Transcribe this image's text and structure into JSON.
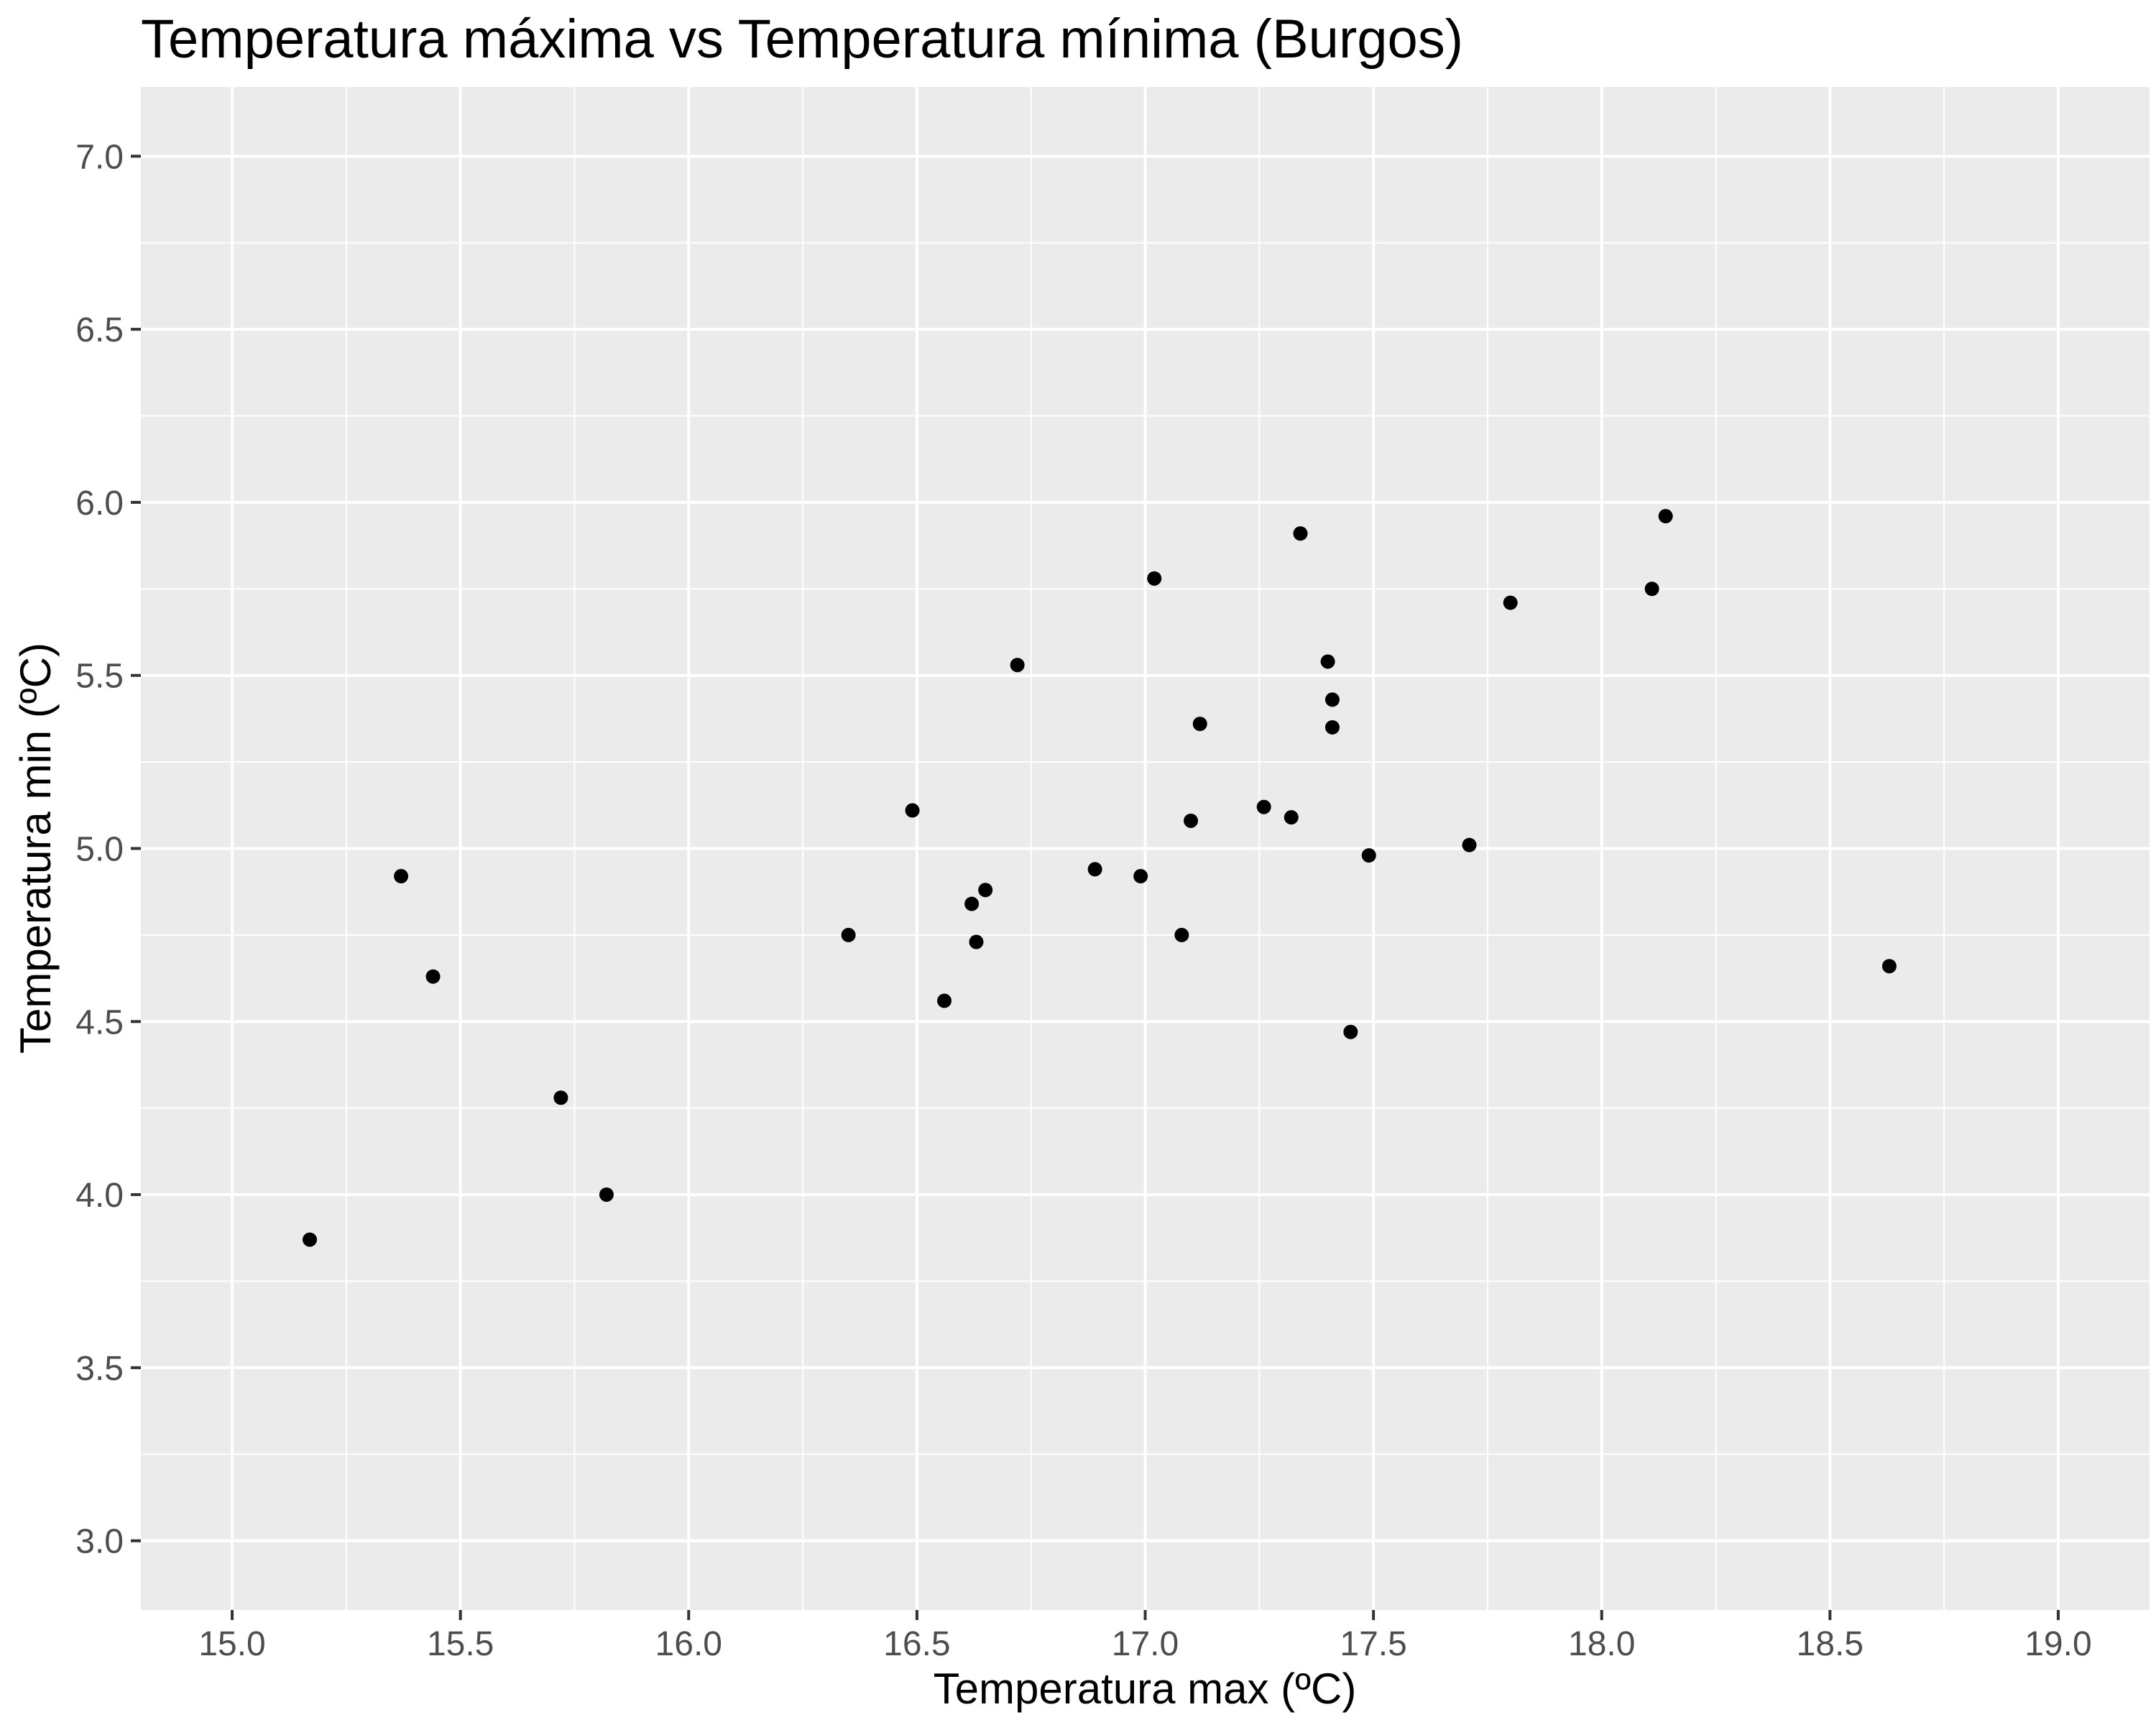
{
  "chart_data": {
    "type": "scatter",
    "title": "Temperatura máxima vs Temperatura mínima (Burgos)",
    "xlabel": "Temperatura max (ºC)",
    "ylabel": "Temperatura min (ºC)",
    "xlim": [
      14.8,
      19.2
    ],
    "ylim": [
      2.8,
      7.2
    ],
    "x_ticks": [
      15.0,
      15.5,
      16.0,
      16.5,
      17.0,
      17.5,
      18.0,
      18.5,
      19.0
    ],
    "x_tick_labels": [
      "15.0",
      "15.5",
      "16.0",
      "16.5",
      "17.0",
      "17.5",
      "18.0",
      "18.5",
      "19.0"
    ],
    "y_ticks": [
      3.0,
      3.5,
      4.0,
      4.5,
      5.0,
      5.5,
      6.0,
      6.5,
      7.0
    ],
    "y_tick_labels": [
      "3.0",
      "3.5",
      "4.0",
      "4.5",
      "5.0",
      "5.5",
      "6.0",
      "6.5",
      "7.0"
    ],
    "grid": true,
    "legend": "none",
    "colors": {
      "panel": "#ebebeb",
      "grid": "#ffffff",
      "point": "#000000",
      "tick_text": "#4d4d4d"
    },
    "points": [
      {
        "x": 15.17,
        "y": 3.87
      },
      {
        "x": 15.37,
        "y": 4.92
      },
      {
        "x": 15.44,
        "y": 4.63
      },
      {
        "x": 15.72,
        "y": 4.28
      },
      {
        "x": 15.82,
        "y": 4.0
      },
      {
        "x": 16.35,
        "y": 4.75
      },
      {
        "x": 16.49,
        "y": 5.11
      },
      {
        "x": 16.56,
        "y": 4.56
      },
      {
        "x": 16.62,
        "y": 4.84
      },
      {
        "x": 16.63,
        "y": 4.73
      },
      {
        "x": 16.65,
        "y": 4.88
      },
      {
        "x": 16.72,
        "y": 5.53
      },
      {
        "x": 16.89,
        "y": 4.94
      },
      {
        "x": 16.99,
        "y": 4.92
      },
      {
        "x": 17.02,
        "y": 5.78
      },
      {
        "x": 17.08,
        "y": 4.75
      },
      {
        "x": 17.1,
        "y": 5.08
      },
      {
        "x": 17.12,
        "y": 5.36
      },
      {
        "x": 17.26,
        "y": 5.12
      },
      {
        "x": 17.32,
        "y": 5.09
      },
      {
        "x": 17.34,
        "y": 5.91
      },
      {
        "x": 17.4,
        "y": 5.54
      },
      {
        "x": 17.41,
        "y": 5.43
      },
      {
        "x": 17.41,
        "y": 5.35
      },
      {
        "x": 17.45,
        "y": 4.47
      },
      {
        "x": 17.49,
        "y": 4.98
      },
      {
        "x": 17.71,
        "y": 5.01
      },
      {
        "x": 17.8,
        "y": 5.71
      },
      {
        "x": 18.11,
        "y": 5.75
      },
      {
        "x": 18.14,
        "y": 5.96
      },
      {
        "x": 18.63,
        "y": 4.66
      }
    ]
  }
}
